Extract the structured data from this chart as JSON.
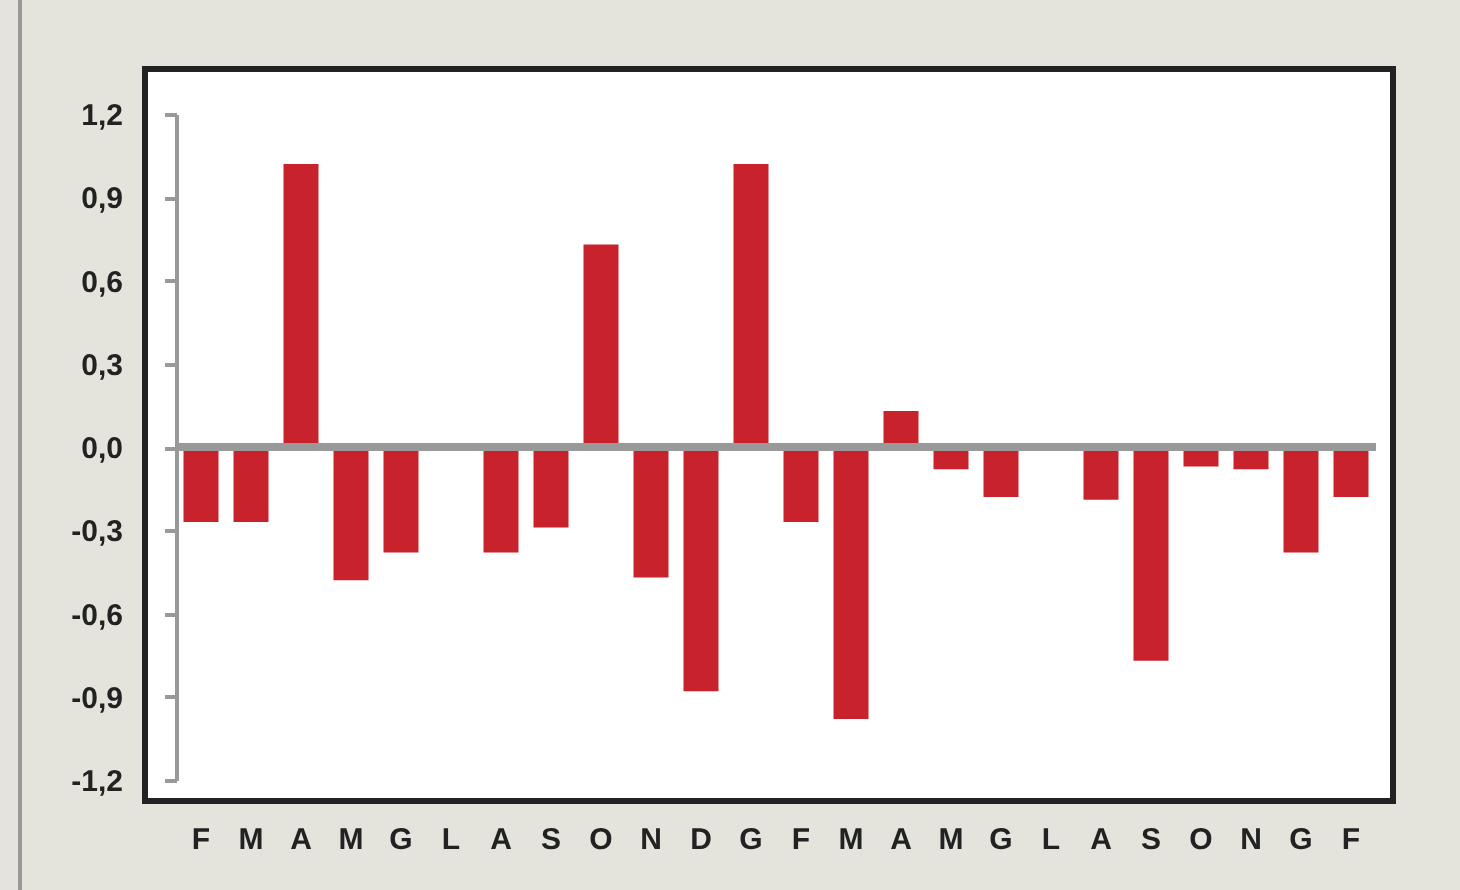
{
  "chart_data": {
    "type": "bar",
    "categories": [
      "F",
      "M",
      "A",
      "M",
      "G",
      "L",
      "A",
      "S",
      "O",
      "N",
      "D",
      "G",
      "F",
      "M",
      "A",
      "M",
      "G",
      "L",
      "A",
      "S",
      "O",
      "N",
      "G",
      "F"
    ],
    "values": [
      -0.27,
      -0.27,
      1.02,
      -0.48,
      -0.38,
      null,
      -0.38,
      -0.29,
      0.73,
      -0.47,
      -0.88,
      1.02,
      -0.27,
      -0.98,
      0.13,
      -0.08,
      -0.18,
      null,
      -0.19,
      -0.77,
      -0.07,
      -0.08,
      -0.38,
      -0.18
    ],
    "color": "#c8232c",
    "ylim": [
      -1.2,
      1.2
    ],
    "yticks": [
      {
        "value": -1.2,
        "label": "-1,2"
      },
      {
        "value": -0.9,
        "label": "-0,9"
      },
      {
        "value": -0.6,
        "label": "-0,6"
      },
      {
        "value": -0.3,
        "label": "-0,3"
      },
      {
        "value": 0,
        "label": "0,0"
      },
      {
        "value": 0.3,
        "label": "0,3"
      },
      {
        "value": 0.6,
        "label": "0,6"
      },
      {
        "value": 0.9,
        "label": "0,9"
      },
      {
        "value": 1.2,
        "label": "1,2"
      }
    ],
    "ref_lines": [
      {
        "axis": "y",
        "value": 0,
        "color": "#999999"
      }
    ],
    "grid": false
  }
}
